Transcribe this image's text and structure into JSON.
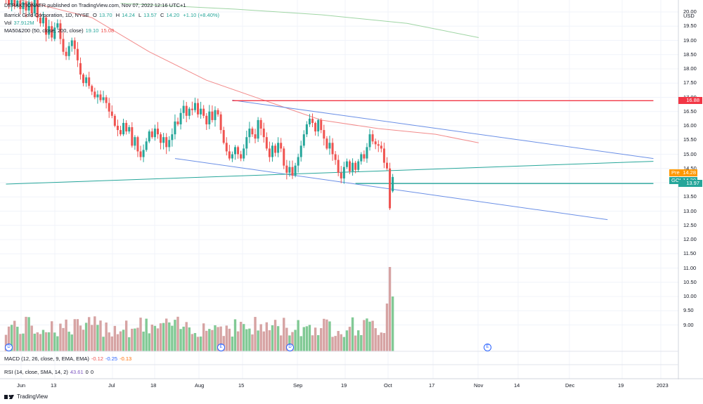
{
  "header": {
    "publisher": "DERAKTIONAER published on TradingView.com, Nov 07, 2022 12:16 UTC+1",
    "symbol_line": "Barrick Gold Corporation, 1D, NYSE",
    "ohlc": {
      "o_label": "O",
      "o": "13.70",
      "h_label": "H",
      "h": "14.24",
      "l_label": "L",
      "l": "13.57",
      "c_label": "C",
      "c": "14.20",
      "chg": "+1.10 (+8.40%)"
    },
    "volume": {
      "label": "Vol",
      "value": "37.912M"
    },
    "ma": {
      "label": "MA50&200 (50, close, 200, close)",
      "v1": "19.10",
      "v2": "15.08"
    },
    "macd": {
      "label": "MACD (12, 26, close, 9, EMA, EMA)",
      "v1": "-0.12",
      "v2": "-0.25",
      "v3": "-0.13"
    },
    "rsi": {
      "label": "RSI (14, close, SMA, 14, 2)",
      "v1": "43.61",
      "v2": "0",
      "v3": "0"
    }
  },
  "price_axis": {
    "currency": "USD",
    "ticks": [
      "20.00",
      "19.50",
      "19.00",
      "18.50",
      "18.00",
      "17.50",
      "17.00",
      "16.50",
      "16.00",
      "15.50",
      "15.00",
      "14.50",
      "14.00",
      "13.50",
      "13.00",
      "12.50",
      "12.00",
      "11.50",
      "11.00",
      "10.50",
      "10.00",
      "9.50",
      "9.00"
    ]
  },
  "time_axis": {
    "ticks": [
      "Jun",
      "13",
      "Jul",
      "18",
      "Aug",
      "15",
      "Sep",
      "19",
      "Oct",
      "17",
      "Nov",
      "14",
      "Dec",
      "19",
      "2023"
    ]
  },
  "price_tags": [
    {
      "label": "",
      "value": "16.88",
      "color": "#f23645"
    },
    {
      "label": "Pre",
      "value": "14.28",
      "color": "#ff9800"
    },
    {
      "label": "GOLD",
      "value": "14.20",
      "color": "#26a69a"
    },
    {
      "label": "",
      "value": "13.97",
      "color": "#26a69a"
    }
  ],
  "events": [
    {
      "letter": "D",
      "date": "Jun"
    },
    {
      "letter": "E",
      "date": "Aug"
    },
    {
      "letter": "D",
      "date": "Aug"
    },
    {
      "letter": "E",
      "date": "Nov"
    }
  ],
  "footer": {
    "brand": "TradingView"
  },
  "chart_data": {
    "type": "candlestick",
    "title": "Barrick Gold Corporation, 1D, NYSE",
    "period": "late May 2022 – Nov 4 2022",
    "ylim": [
      8.6,
      20.6
    ],
    "colors": {
      "up": "#26a69a",
      "down": "#ef5350",
      "up_vol": "#81c995",
      "down_vol": "#d6a3a3",
      "ma50": "#f28b8b",
      "ma200": "#9fd5a4",
      "channel": "#6a8fe6",
      "resistance": "#f23645",
      "support": "#26a69a"
    },
    "candles": [
      [
        20.55,
        20.45
      ],
      [
        20.45,
        20.25
      ],
      [
        20.25,
        20.45
      ],
      [
        20.45,
        20.2
      ],
      [
        20.2,
        20.4
      ],
      [
        20.4,
        20.1
      ],
      [
        20.1,
        20.35
      ],
      [
        20.35,
        20.05
      ],
      [
        20.05,
        20.35
      ],
      [
        20.3,
        19.95
      ],
      [
        19.95,
        20.45
      ],
      [
        20.45,
        19.8
      ],
      [
        19.8,
        19.6
      ],
      [
        19.6,
        19.8
      ],
      [
        19.8,
        19.2
      ],
      [
        19.2,
        19.5
      ],
      [
        19.5,
        19.1
      ],
      [
        19.05,
        19.45
      ],
      [
        19.45,
        19.6
      ],
      [
        19.6,
        19.05
      ],
      [
        19.05,
        18.6
      ],
      [
        18.6,
        18.45
      ],
      [
        18.45,
        18.8
      ],
      [
        18.8,
        19.0
      ],
      [
        19.0,
        18.7
      ],
      [
        18.7,
        18.3
      ],
      [
        18.2,
        17.8
      ],
      [
        17.8,
        17.5
      ],
      [
        17.5,
        17.7
      ],
      [
        17.7,
        17.4
      ],
      [
        17.4,
        17.2
      ],
      [
        17.2,
        17.0
      ],
      [
        17.0,
        17.1
      ],
      [
        17.1,
        16.9
      ],
      [
        16.9,
        17.0
      ],
      [
        17.0,
        16.8
      ],
      [
        16.8,
        16.5
      ],
      [
        16.5,
        16.35
      ],
      [
        16.35,
        16.0
      ],
      [
        16.0,
        15.85
      ],
      [
        15.85,
        15.7
      ],
      [
        15.7,
        16.1
      ],
      [
        16.1,
        15.8
      ],
      [
        15.8,
        15.95
      ],
      [
        15.95,
        15.3
      ],
      [
        15.3,
        15.6
      ],
      [
        15.6,
        15.1
      ],
      [
        15.1,
        14.9
      ],
      [
        14.9,
        15.15
      ],
      [
        15.15,
        15.45
      ],
      [
        15.45,
        15.8
      ],
      [
        15.8,
        15.6
      ],
      [
        15.6,
        15.9
      ],
      [
        15.9,
        15.7
      ],
      [
        15.7,
        15.4
      ],
      [
        15.4,
        15.6
      ],
      [
        15.6,
        15.25
      ],
      [
        15.25,
        15.5
      ],
      [
        15.5,
        15.7
      ],
      [
        15.7,
        16.15
      ],
      [
        16.15,
        16.05
      ],
      [
        16.05,
        16.45
      ],
      [
        16.45,
        16.7
      ],
      [
        16.7,
        16.35
      ],
      [
        16.35,
        16.6
      ],
      [
        16.6,
        16.55
      ],
      [
        16.55,
        16.8
      ],
      [
        16.8,
        16.4
      ],
      [
        16.4,
        16.6
      ],
      [
        16.6,
        16.35
      ],
      [
        16.35,
        16.05
      ],
      [
        16.05,
        16.5
      ],
      [
        16.5,
        16.2
      ],
      [
        16.2,
        16.55
      ],
      [
        16.55,
        16.4
      ],
      [
        16.4,
        15.85
      ],
      [
        15.85,
        15.4
      ],
      [
        15.4,
        15.1
      ],
      [
        15.1,
        14.85
      ],
      [
        14.85,
        15.0
      ],
      [
        15.0,
        15.25
      ],
      [
        15.25,
        15.0
      ],
      [
        15.0,
        14.85
      ],
      [
        14.85,
        15.2
      ],
      [
        15.2,
        15.6
      ],
      [
        15.6,
        15.9
      ],
      [
        15.9,
        15.7
      ],
      [
        15.7,
        15.55
      ],
      [
        15.55,
        16.2
      ],
      [
        16.2,
        15.9
      ],
      [
        15.9,
        15.6
      ],
      [
        15.6,
        15.2
      ],
      [
        15.2,
        14.9
      ],
      [
        14.9,
        15.3
      ],
      [
        15.3,
        15.05
      ],
      [
        15.05,
        15.4
      ],
      [
        15.4,
        15.2
      ],
      [
        15.2,
        14.6
      ],
      [
        14.6,
        14.35
      ],
      [
        14.35,
        14.55
      ],
      [
        14.55,
        14.25
      ],
      [
        14.25,
        14.6
      ],
      [
        14.6,
        14.9
      ],
      [
        14.9,
        15.3
      ],
      [
        15.3,
        15.7
      ],
      [
        15.7,
        16.05
      ],
      [
        16.05,
        16.25
      ],
      [
        16.25,
        16.1
      ],
      [
        16.1,
        15.8
      ],
      [
        15.8,
        16.2
      ],
      [
        16.2,
        15.85
      ],
      [
        15.85,
        15.55
      ],
      [
        15.55,
        15.2
      ],
      [
        15.2,
        15.4
      ],
      [
        15.4,
        15.0
      ],
      [
        15.0,
        14.8
      ],
      [
        14.8,
        14.35
      ],
      [
        14.35,
        14.15
      ],
      [
        14.15,
        14.55
      ],
      [
        14.55,
        14.75
      ],
      [
        14.75,
        14.4
      ],
      [
        14.4,
        14.7
      ],
      [
        14.7,
        14.45
      ],
      [
        14.45,
        14.75
      ],
      [
        14.75,
        15.0
      ],
      [
        15.0,
        14.85
      ],
      [
        14.85,
        15.25
      ],
      [
        15.25,
        15.7
      ],
      [
        15.7,
        15.45
      ],
      [
        15.45,
        15.35
      ],
      [
        15.35,
        15.3
      ],
      [
        15.3,
        15.2
      ],
      [
        15.2,
        14.7
      ],
      [
        14.7,
        14.5
      ],
      [
        14.5,
        13.1
      ],
      [
        13.7,
        14.2
      ]
    ],
    "volume_scale_label": "volume (relative)",
    "ma50": [
      [
        0,
        20.55
      ],
      [
        30,
        19.8
      ],
      [
        50,
        18.6
      ],
      [
        70,
        17.6
      ],
      [
        90,
        16.9
      ],
      [
        110,
        16.2
      ],
      [
        130,
        15.9
      ],
      [
        150,
        15.7
      ],
      [
        165,
        15.4
      ]
    ],
    "ma200": [
      [
        40,
        20.3
      ],
      [
        80,
        20.1
      ],
      [
        110,
        19.9
      ],
      [
        140,
        19.6
      ],
      [
        165,
        19.1
      ]
    ],
    "trendlines": [
      {
        "name": "upper",
        "from": [
          79,
          16.9
        ],
        "to": [
          226,
          14.85
        ],
        "color": "channel"
      },
      {
        "name": "lower",
        "from": [
          59,
          14.85
        ],
        "to": [
          210,
          12.7
        ],
        "color": "channel"
      },
      {
        "name": "long-support",
        "from": [
          0,
          13.95
        ],
        "to": [
          226,
          14.75
        ],
        "color": "support"
      },
      {
        "name": "resistance",
        "from": [
          79,
          16.88
        ],
        "to": [
          226,
          16.88
        ],
        "color": "resistance"
      },
      {
        "name": "support",
        "from": [
          122,
          13.97
        ],
        "to": [
          226,
          13.97
        ],
        "color": "support"
      }
    ]
  }
}
